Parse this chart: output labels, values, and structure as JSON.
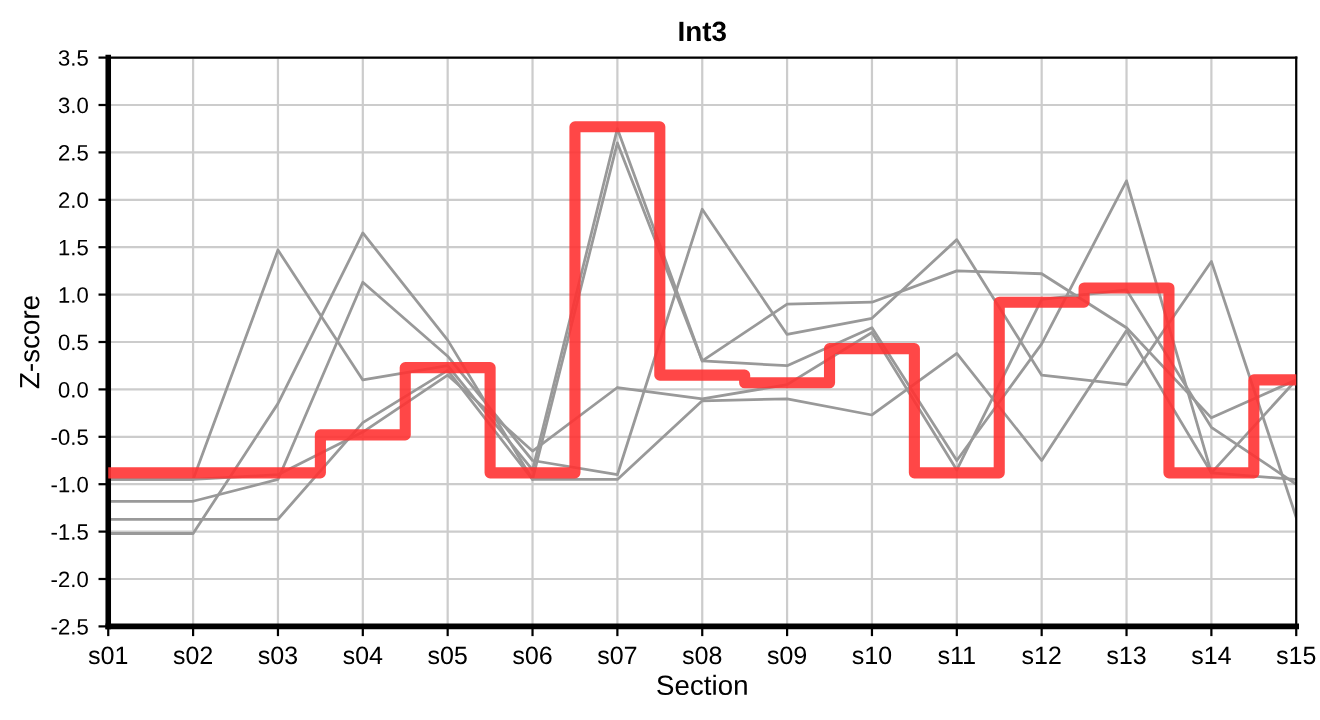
{
  "chart_data": {
    "type": "line",
    "title": "Int3",
    "xlabel": "Section",
    "ylabel": "Z-score",
    "categories": [
      "s01",
      "s02",
      "s03",
      "s04",
      "s05",
      "s06",
      "s07",
      "s08",
      "s09",
      "s10",
      "s11",
      "s12",
      "s13",
      "s14",
      "s15"
    ],
    "ylim": [
      -2.5,
      3.5
    ],
    "yticks": [
      {
        "value": -2.5,
        "label": "-2.5"
      },
      {
        "value": -2,
        "label": "-2.0"
      },
      {
        "value": -1.5,
        "label": "-1.5"
      },
      {
        "value": -1,
        "label": "-1.0"
      },
      {
        "value": -0.5,
        "label": "-0.5"
      },
      {
        "value": 0,
        "label": "0.0"
      },
      {
        "value": 0.5,
        "label": "0.5"
      },
      {
        "value": 1,
        "label": "1.0"
      },
      {
        "value": 1.5,
        "label": "1.5"
      },
      {
        "value": 2,
        "label": "2.0"
      },
      {
        "value": 2.5,
        "label": "2.5"
      },
      {
        "value": 3,
        "label": "3.0"
      },
      {
        "value": 3.5,
        "label": "3.5"
      }
    ],
    "grid": true,
    "legend": false,
    "marker": "none",
    "line_style": "solid",
    "series": [
      {
        "color": "#999999",
        "values": [
          -0.95,
          -0.95,
          1.47,
          0.1,
          0.25,
          -0.85,
          2.75,
          0.3,
          0.9,
          0.92,
          1.25,
          1.22,
          0.65,
          -0.3,
          0.1
        ]
      },
      {
        "color": "#999999",
        "values": [
          -1.52,
          -1.52,
          -0.15,
          1.65,
          0.52,
          -0.95,
          2.6,
          0.3,
          0.25,
          0.65,
          -0.75,
          0.48,
          2.2,
          -0.88,
          0.1
        ]
      },
      {
        "color": "#999999",
        "values": [
          -1.18,
          -1.18,
          -0.95,
          1.13,
          0.35,
          -0.75,
          -0.9,
          1.9,
          0.58,
          0.75,
          1.58,
          0.15,
          0.05,
          1.35,
          -1.35
        ]
      },
      {
        "color": "#999999",
        "values": [
          -1.37,
          -1.37,
          -1.37,
          -0.35,
          0.2,
          -0.95,
          -0.95,
          -0.12,
          -0.1,
          -0.27,
          0.38,
          -0.75,
          0.62,
          -0.88,
          -0.95
        ]
      },
      {
        "color": "#999999",
        "values": [
          -0.95,
          -0.95,
          -0.9,
          -0.45,
          0.15,
          -0.65,
          0.02,
          -0.1,
          0.05,
          0.6,
          -0.85,
          0.95,
          1.05,
          -0.4,
          -1.0
        ]
      },
      {
        "type": "step",
        "color": "#ff3333",
        "values": [
          -0.88,
          -0.88,
          -0.88,
          -0.48,
          0.23,
          -0.88,
          2.77,
          0.15,
          0.07,
          0.43,
          -0.88,
          0.92,
          1.07,
          -0.88,
          0.1
        ]
      }
    ]
  }
}
